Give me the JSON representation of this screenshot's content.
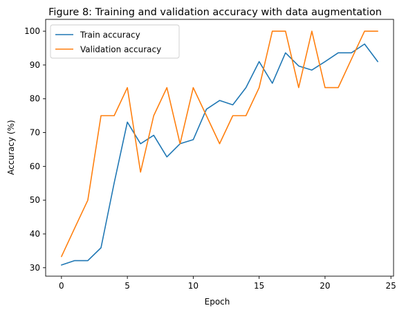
{
  "chart_data": {
    "type": "line",
    "title": "Figure 8: Training and validation accuracy with data augmentation",
    "xlabel": "Epoch",
    "ylabel": "Accuracy (%)",
    "xlim": [
      -1.2,
      25.2
    ],
    "ylim": [
      27.5,
      103.5
    ],
    "xticks": [
      0,
      5,
      10,
      15,
      20,
      25
    ],
    "yticks": [
      30,
      40,
      50,
      60,
      70,
      80,
      90,
      100
    ],
    "grid": false,
    "legend_position": "upper-left",
    "x": [
      0,
      1,
      2,
      3,
      4,
      5,
      6,
      7,
      8,
      9,
      10,
      11,
      12,
      13,
      14,
      15,
      16,
      17,
      18,
      19,
      20,
      21,
      22,
      23,
      24
    ],
    "series": [
      {
        "name": "Train accuracy",
        "color": "#1f77b4",
        "values": [
          30.8,
          32.1,
          32.1,
          35.9,
          55.1,
          73.1,
          66.7,
          69.2,
          62.8,
          66.7,
          67.9,
          76.9,
          79.5,
          78.2,
          83.3,
          91.0,
          84.6,
          93.6,
          89.7,
          88.5,
          91.0,
          93.6,
          93.6,
          96.2,
          91.0
        ]
      },
      {
        "name": "Validation accuracy",
        "color": "#ff7f0e",
        "values": [
          33.3,
          41.7,
          50.0,
          75.0,
          75.0,
          83.3,
          58.3,
          75.0,
          83.3,
          66.7,
          83.3,
          75.0,
          66.7,
          75.0,
          75.0,
          83.3,
          100.0,
          100.0,
          83.3,
          100.0,
          83.3,
          83.3,
          91.7,
          100.0,
          100.0
        ]
      }
    ]
  }
}
